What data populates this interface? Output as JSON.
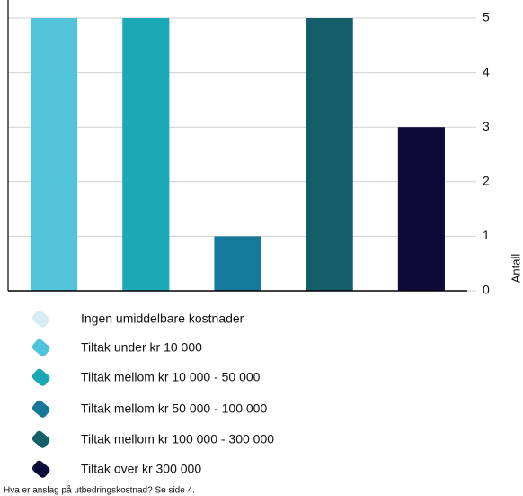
{
  "chart_data": {
    "type": "bar",
    "categories": [
      null,
      null,
      null,
      null,
      null
    ],
    "values": [
      5,
      5,
      1,
      5,
      3
    ],
    "colors": [
      "#52c3d8",
      "#1ba9b5",
      "#15799b",
      "#155e69",
      "#0d0a3b"
    ],
    "ylim": [
      0,
      5
    ],
    "yticks": [
      0,
      1,
      2,
      3,
      4,
      5
    ],
    "grid": true,
    "y_label": "Antall",
    "legend": [
      {
        "name": "Ingen umiddelbare kostnader",
        "color": "#d6ecf3"
      },
      {
        "name": "Tiltak under kr 10 000",
        "color": "#4fc3d9"
      },
      {
        "name": "Tiltak mellom kr 10 000 - 50 000",
        "color": "#1aa8b4"
      },
      {
        "name": "Tiltak mellom kr 50 000 - 100 000",
        "color": "#157899"
      },
      {
        "name": "Tiltak mellom kr 100 000 - 300 000",
        "color": "#155f6a"
      },
      {
        "name": "Tiltak over kr 300 000",
        "color": "#0c0a3a"
      }
    ],
    "footnote": "Hva er anslag på utbedringskostnad? Se side 4."
  }
}
